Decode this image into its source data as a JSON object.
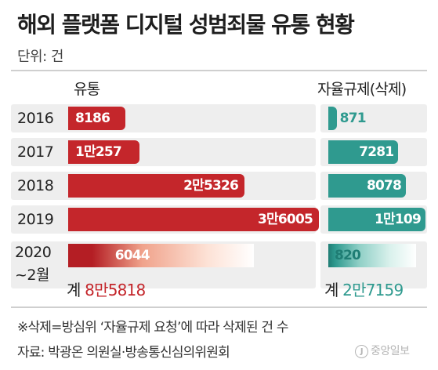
{
  "title": "해외 플랫폼 디지털 성범죄물 유통 현황",
  "unit": "단위: 건",
  "chart_data": {
    "type": "bar",
    "title": "해외 플랫폼 디지털 성범죄물 유통 현황",
    "unit": "단위: 건",
    "categories": [
      "2016",
      "2017",
      "2018",
      "2019",
      "2020 ~2월"
    ],
    "series": [
      {
        "name": "유통",
        "values": [
          8186,
          10257,
          25326,
          36005,
          6044
        ],
        "labels": [
          "8186",
          "1만257",
          "2만5326",
          "3만6005",
          "6044"
        ],
        "color": "#c4262b",
        "total_prefix": "계",
        "total": "8만5818"
      },
      {
        "name": "자율규제(삭제)",
        "values": [
          871,
          7281,
          8078,
          10109,
          820
        ],
        "labels": [
          "871",
          "7281",
          "8078",
          "1만109",
          "820"
        ],
        "color": "#2f9a8f",
        "total_prefix": "계",
        "total": "2만7159"
      }
    ],
    "year_lines": [
      [
        "2016"
      ],
      [
        "2017"
      ],
      [
        "2018"
      ],
      [
        "2019"
      ],
      [
        "2020",
        "~2월"
      ]
    ],
    "note": "※삭제=방심위 ‘자율규제 요청’에 따라 삭제된 건 수",
    "source": "자료: 박광온 의원실·방송통신심의위원회",
    "logo_text": "중앙일보",
    "logo_mark": "J"
  }
}
